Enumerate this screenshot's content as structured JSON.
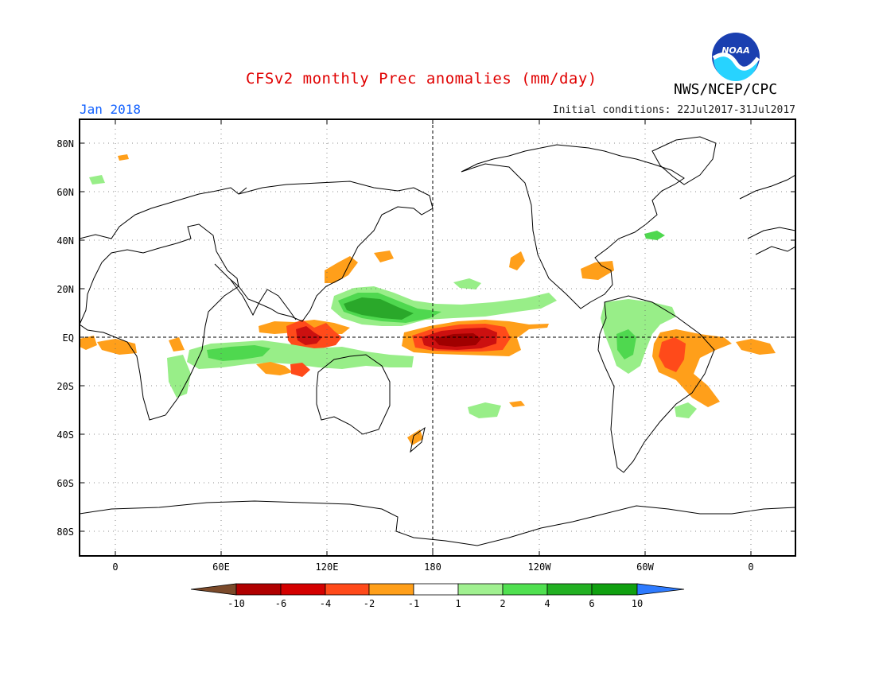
{
  "header": {
    "title": "CFSv2 monthly Prec anomalies (mm/day)",
    "org": "NWS/NCEP/CPC",
    "month": "Jan 2018",
    "init": "Initial conditions: 22Jul2017-31Jul2017",
    "logo_text": "NOAA"
  },
  "axes": {
    "lat_labels": [
      "80N",
      "60N",
      "40N",
      "20N",
      "EQ",
      "20S",
      "40S",
      "60S",
      "80S"
    ],
    "lon_labels": [
      "0",
      "60E",
      "120E",
      "180",
      "120W",
      "60W",
      "0"
    ]
  },
  "colorbar": {
    "labels": [
      "-10",
      "-6",
      "-4",
      "-2",
      "-1",
      "1",
      "2",
      "4",
      "6",
      "10"
    ],
    "colors": [
      "#7b4a2a",
      "#b00000",
      "#d40000",
      "#ff4a1a",
      "#ff9f1a",
      "#ffffff",
      "#a0f090",
      "#50e050",
      "#22b022",
      "#10a010",
      "#2e7bff"
    ]
  },
  "colors": {
    "dry_light": "#ffa020",
    "dry_mid": "#ff6020",
    "dry_strong": "#cc1010",
    "dry_extreme": "#a00000",
    "wet_light": "#98ee88",
    "wet_mid": "#4fd84f",
    "wet_strong": "#2aa82a"
  }
}
